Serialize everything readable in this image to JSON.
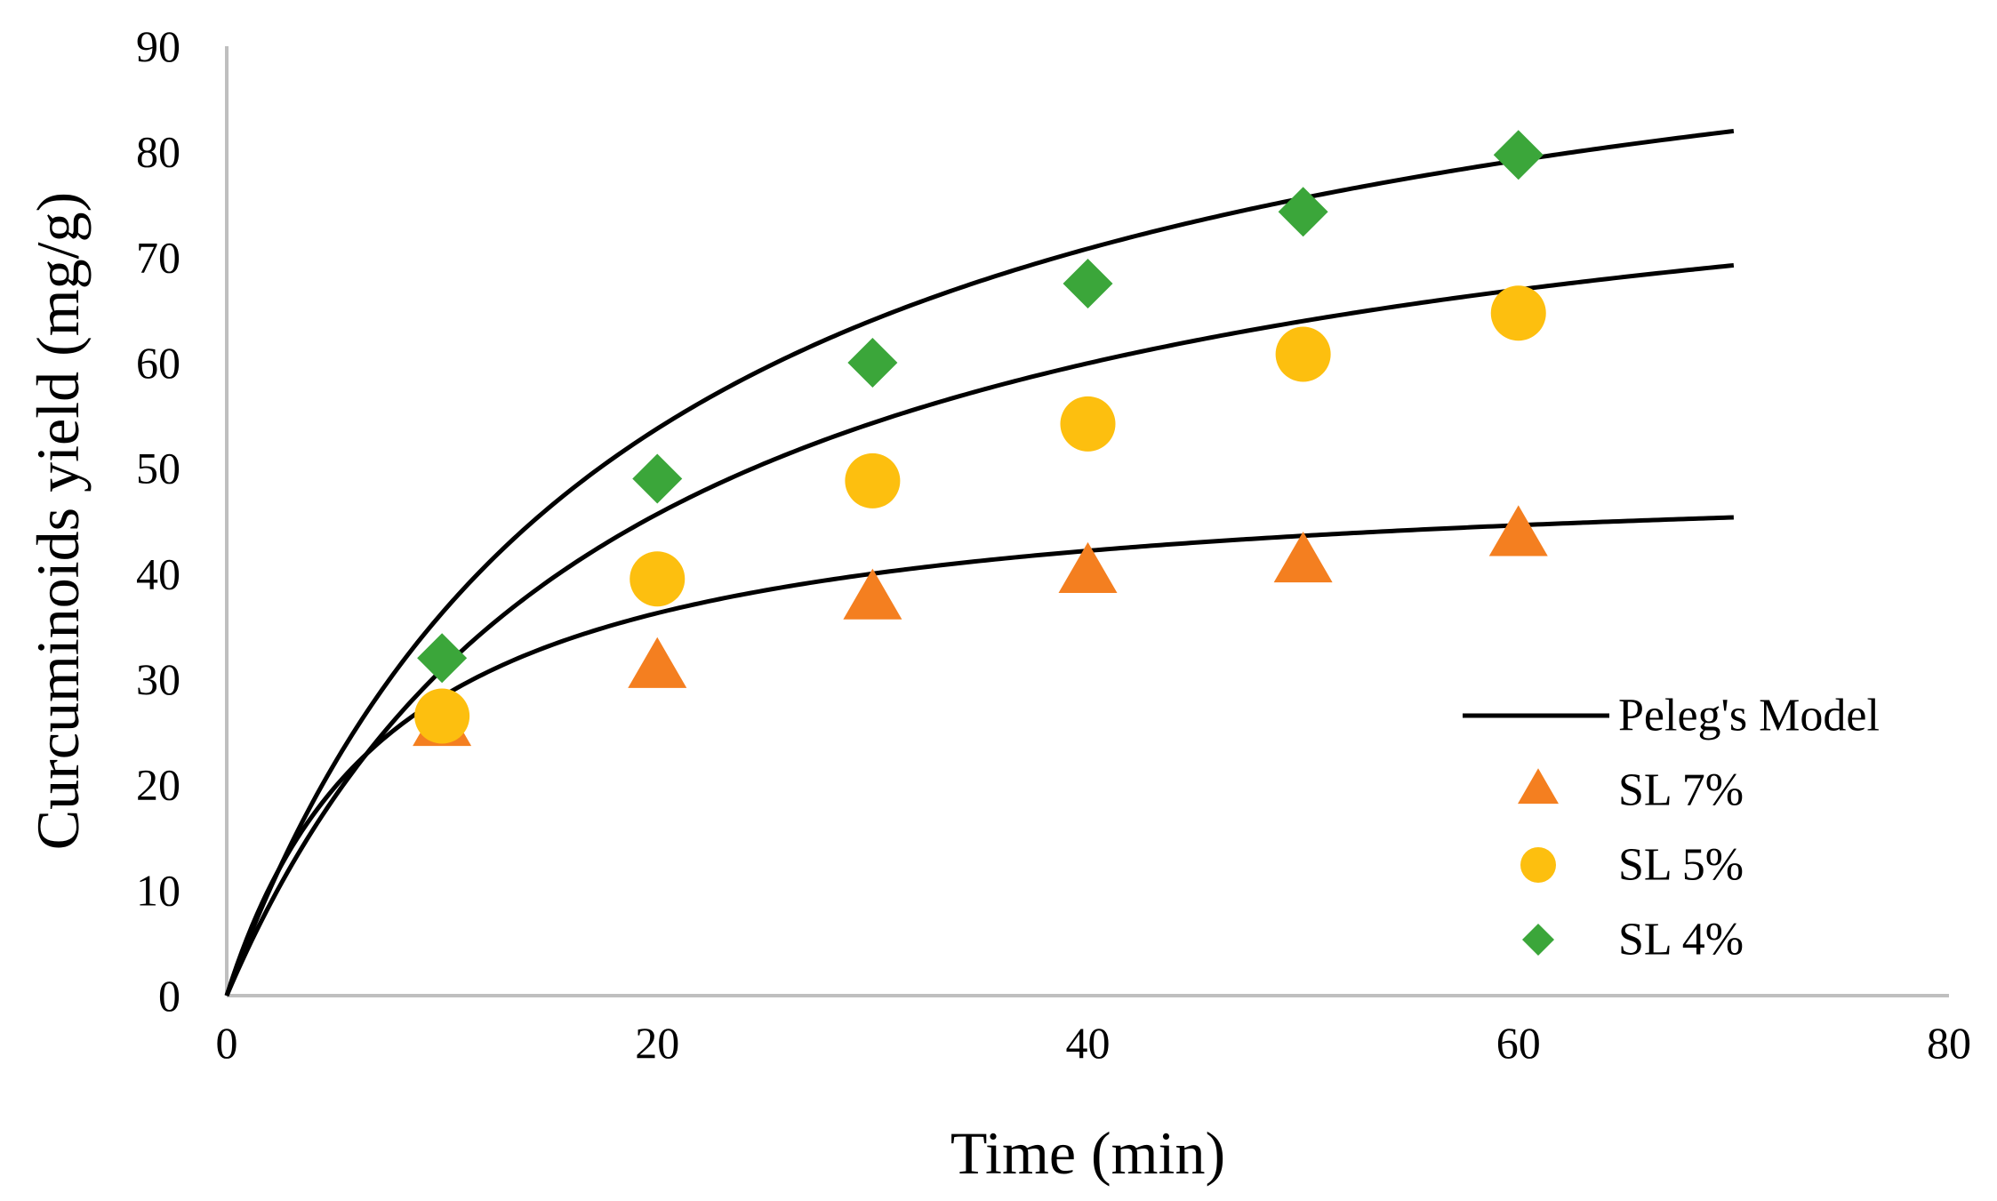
{
  "chart_data": {
    "type": "scatter",
    "title": "",
    "xlabel": "Time (min)",
    "ylabel": "Curcuminoids yield (mg/g)",
    "xlim": [
      0,
      80
    ],
    "ylim": [
      0,
      90
    ],
    "xticks": [
      0,
      20,
      40,
      60,
      80
    ],
    "yticks": [
      0,
      10,
      20,
      30,
      40,
      50,
      60,
      70,
      80,
      90
    ],
    "grid": false,
    "legend_position": "bottom-right",
    "model_label": "Peleg's Model",
    "model_curves": [
      {
        "series": "SL 7%",
        "k1": 0.1545,
        "k2": 0.01985,
        "x_max": 70
      },
      {
        "series": "SL 5%",
        "k1": 0.2089,
        "k2": 0.01146,
        "x_max": 70
      },
      {
        "series": "SL 4%",
        "k1": 0.1793,
        "k2": 0.00964,
        "x_max": 70
      }
    ],
    "series": [
      {
        "name": "SL 7%",
        "marker": "triangle",
        "color": "#F47F20",
        "x": [
          10,
          20,
          30,
          40,
          50,
          60
        ],
        "y": [
          25.5,
          31,
          37.5,
          40,
          41,
          43.5
        ]
      },
      {
        "name": "SL 5%",
        "marker": "circle",
        "color": "#FDBF0F",
        "x": [
          10,
          20,
          30,
          40,
          50,
          60
        ],
        "y": [
          26.5,
          39.5,
          48.8,
          54.2,
          60.8,
          64.7
        ]
      },
      {
        "name": "SL 4%",
        "marker": "diamond",
        "color": "#3BA63A",
        "x": [
          10,
          20,
          30,
          40,
          50,
          60
        ],
        "y": [
          32,
          49,
          60,
          67.5,
          74.3,
          79.7
        ]
      }
    ]
  }
}
